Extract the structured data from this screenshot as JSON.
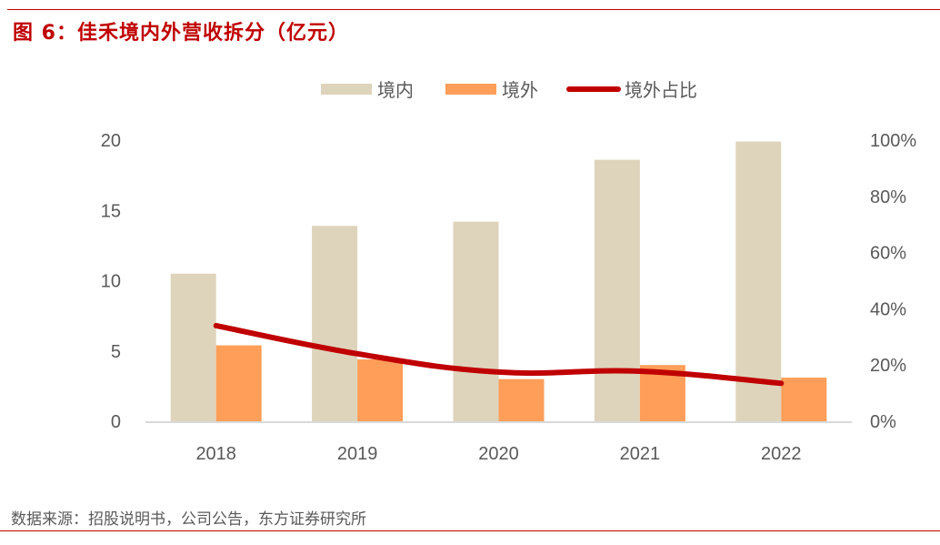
{
  "figure": {
    "title": "图 6：佳禾境内外营收拆分（亿元）",
    "source": "数据来源：招股说明书，公司公告，东方证券研究所"
  },
  "colors": {
    "domestic": "#DED4BC",
    "overseas": "#FF9E59",
    "ratio_line": "#C00000",
    "title": "#C00000",
    "axis_text": "#595959",
    "axis_line": "#D9D9D9"
  },
  "chart_data": {
    "type": "bar",
    "title": "佳禾境内外营收拆分（亿元）",
    "xlabel": "",
    "ylabel": "",
    "categories": [
      "2018",
      "2019",
      "2020",
      "2021",
      "2022"
    ],
    "series": [
      {
        "name": "境内",
        "type": "bar",
        "axis": "left",
        "values": [
          10.5,
          13.9,
          14.2,
          18.6,
          19.9
        ]
      },
      {
        "name": "境外",
        "type": "bar",
        "axis": "left",
        "values": [
          5.4,
          4.4,
          3.0,
          4.0,
          3.1
        ]
      },
      {
        "name": "境外占比",
        "type": "line",
        "axis": "right",
        "values": [
          34,
          24,
          17.5,
          17.8,
          13.5
        ]
      }
    ],
    "ylim": [
      0,
      20
    ],
    "yticks": [
      "0",
      "5",
      "10",
      "15",
      "20"
    ],
    "y2lim": [
      0,
      100
    ],
    "y2ticks": [
      "0%",
      "20%",
      "40%",
      "60%",
      "80%",
      "100%"
    ],
    "grid": false,
    "legend": {
      "position": "top-center",
      "entries": [
        "境内",
        "境外",
        "境外占比"
      ]
    }
  }
}
